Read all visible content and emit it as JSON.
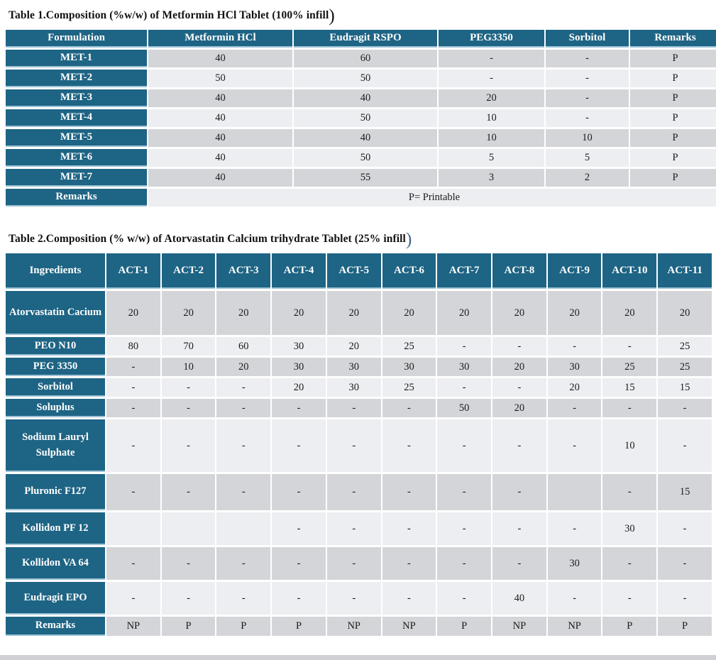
{
  "colors": {
    "header_teal": "#1e6484",
    "row_dark": "#d4d5d8",
    "row_light": "#edeef1",
    "accent_line": "#9cc2d6",
    "paren_accent": "#44618e"
  },
  "table1": {
    "title": "Table 1.Composition (%w/w) of Metformin HCl Tablet (100% infill",
    "closing_paren": ")",
    "columns": [
      "Formulation",
      "Metformin HCl",
      "Eudragit RSPO",
      "PEG3350",
      "Sorbitol",
      "Remarks"
    ],
    "rows": [
      {
        "label": "MET-1",
        "values": [
          "40",
          "60",
          "-",
          "-",
          "P"
        ]
      },
      {
        "label": "MET-2",
        "values": [
          "50",
          "50",
          "-",
          "-",
          "P"
        ]
      },
      {
        "label": "MET-3",
        "values": [
          "40",
          "40",
          "20",
          "-",
          "P"
        ]
      },
      {
        "label": "MET-4",
        "values": [
          "40",
          "50",
          "10",
          "-",
          "P"
        ]
      },
      {
        "label": "MET-5",
        "values": [
          "40",
          "40",
          "10",
          "10",
          "P"
        ]
      },
      {
        "label": "MET-6",
        "values": [
          "40",
          "50",
          "5",
          "5",
          "P"
        ]
      },
      {
        "label": "MET-7",
        "values": [
          "40",
          "55",
          "3",
          "2",
          "P"
        ]
      },
      {
        "label": "Remarks",
        "span": true,
        "values": [
          "P= Printable"
        ]
      }
    ]
  },
  "table2": {
    "title": "Table 2.Composition (% w/w) of Atorvastatin Calcium trihydrate Tablet (25% infill",
    "closing_paren": ")",
    "columns": [
      "Ingredients",
      "ACT-1",
      "ACT-2",
      "ACT-3",
      "ACT-4",
      "ACT-5",
      "ACT-6",
      "ACT-7",
      "ACT-8",
      "ACT-9",
      "ACT-10",
      "ACT-11"
    ],
    "rows": [
      {
        "label": "Atorvastatin Cacium",
        "values": [
          "20",
          "20",
          "20",
          "20",
          "20",
          "20",
          "20",
          "20",
          "20",
          "20",
          "20"
        ]
      },
      {
        "label": "PEO N10",
        "values": [
          "80",
          "70",
          "60",
          "30",
          "20",
          "25",
          "-",
          "-",
          "-",
          "-",
          "25"
        ]
      },
      {
        "label": "PEG 3350",
        "values": [
          "-",
          "10",
          "20",
          "30",
          "30",
          "30",
          "30",
          "20",
          "30",
          "25",
          "25"
        ]
      },
      {
        "label": "Sorbitol",
        "values": [
          "-",
          "-",
          "-",
          "20",
          "30",
          "25",
          "-",
          "-",
          "20",
          "15",
          "15"
        ]
      },
      {
        "label": "Soluplus",
        "values": [
          "-",
          "-",
          "-",
          "-",
          "-",
          "-",
          "50",
          "20",
          "-",
          "-",
          "-"
        ]
      },
      {
        "label": "Sodium Lauryl Sulphate",
        "values": [
          "-",
          "-",
          "-",
          "-",
          "-",
          "-",
          "-",
          "-",
          "-",
          "10",
          "-"
        ]
      },
      {
        "label": "Pluronic F127",
        "values": [
          "-",
          "-",
          "-",
          "-",
          "-",
          "-",
          "-",
          "-",
          "",
          "-",
          "15"
        ]
      },
      {
        "label": "Kollidon PF 12",
        "values": [
          "",
          "",
          "",
          "-",
          "-",
          "-",
          "-",
          "-",
          "-",
          "30",
          "-"
        ]
      },
      {
        "label": "Kollidon VA 64",
        "values": [
          "-",
          "-",
          "-",
          "-",
          "-",
          "-",
          "-",
          "-",
          "30",
          "-",
          "-"
        ]
      },
      {
        "label": "Eudragit EPO",
        "values": [
          "-",
          "-",
          "-",
          "-",
          "-",
          "-",
          "-",
          "40",
          "-",
          "-",
          "-"
        ]
      },
      {
        "label": "Remarks",
        "values": [
          "NP",
          "P",
          "P",
          "P",
          "NP",
          "NP",
          "P",
          "NP",
          "NP",
          "P",
          "P"
        ]
      }
    ]
  }
}
